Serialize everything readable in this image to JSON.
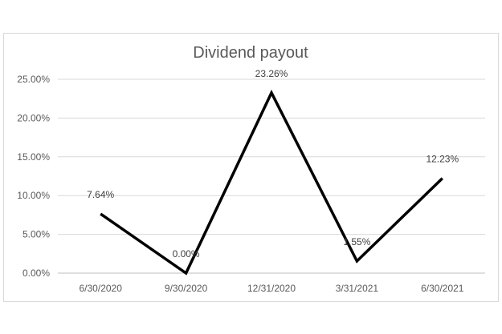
{
  "chart_data": {
    "type": "line",
    "title": "Dividend payout",
    "xlabel": "",
    "ylabel": "",
    "categories": [
      "6/30/2020",
      "9/30/2020",
      "12/31/2020",
      "3/31/2021",
      "6/30/2021"
    ],
    "series": [
      {
        "values": [
          7.64,
          0.0,
          23.26,
          1.55,
          12.23
        ]
      }
    ],
    "data_labels": [
      "7.64%",
      "0.00%",
      "23.26%",
      "1.55%",
      "12.23%"
    ],
    "ylim": [
      0,
      25
    ],
    "y_ticks": [
      0,
      5,
      10,
      15,
      20,
      25
    ],
    "y_tick_labels": [
      "0.00%",
      "5.00%",
      "10.00%",
      "15.00%",
      "20.00%",
      "25.00%"
    ],
    "grid": true,
    "legend": "none",
    "colors": {
      "line": "#000000",
      "grid": "#d9d9d9",
      "text": "#595959"
    }
  }
}
